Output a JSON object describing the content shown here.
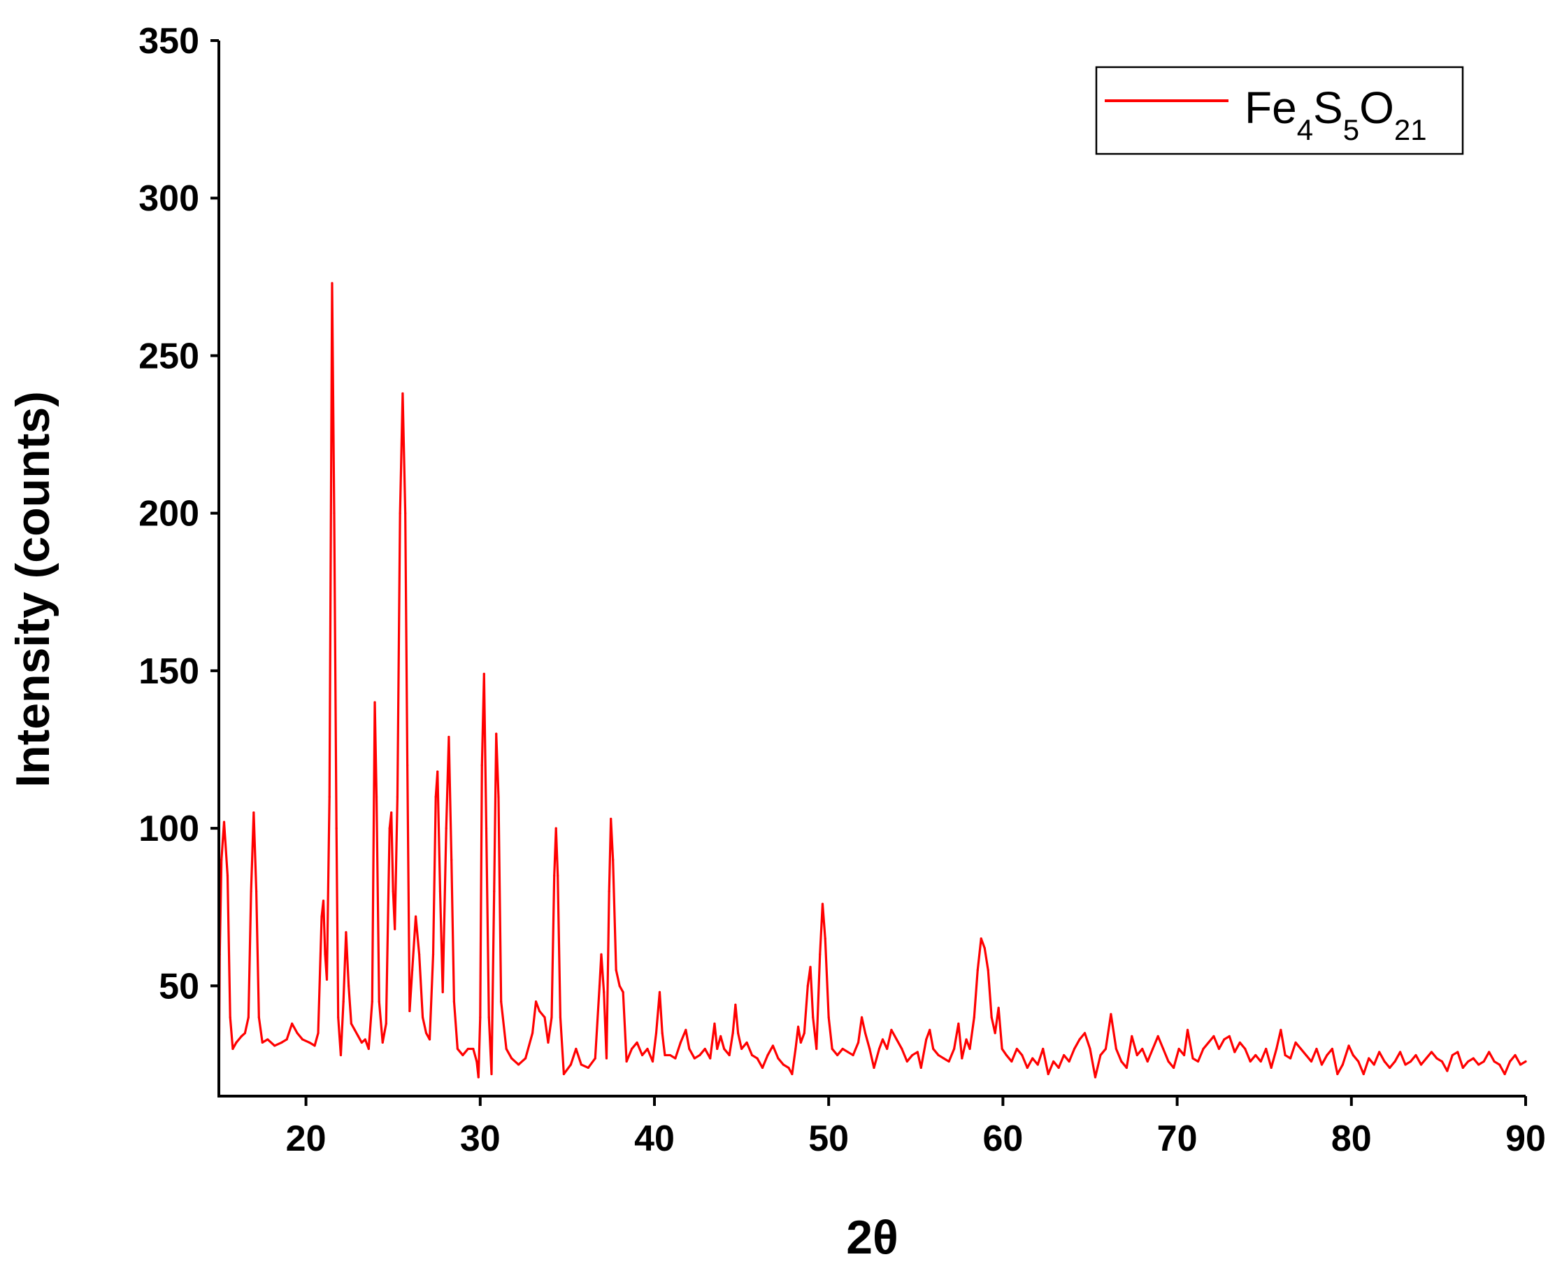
{
  "chart_data": {
    "type": "line",
    "title": "",
    "xlabel": "2θ",
    "ylabel": "Intensity (counts)",
    "xlim": [
      15,
      90
    ],
    "ylim": [
      15,
      350
    ],
    "x_ticks": [
      20,
      30,
      40,
      50,
      60,
      70,
      80,
      90
    ],
    "y_ticks": [
      50,
      100,
      150,
      200,
      250,
      300,
      350
    ],
    "grid": false,
    "legend_position": "top-right",
    "series": [
      {
        "name": "Fe4S5O21",
        "legend_parts": [
          {
            "text": "Fe",
            "sub": false
          },
          {
            "text": "4",
            "sub": true
          },
          {
            "text": "S",
            "sub": false
          },
          {
            "text": "5",
            "sub": true
          },
          {
            "text": "O",
            "sub": false
          },
          {
            "text": "21",
            "sub": true
          }
        ],
        "color": "#ff0000",
        "points": [
          [
            15.0,
            18
          ],
          [
            15.05,
            60
          ],
          [
            15.15,
            90
          ],
          [
            15.3,
            102
          ],
          [
            15.5,
            85
          ],
          [
            15.65,
            40
          ],
          [
            15.8,
            30
          ],
          [
            16.0,
            32
          ],
          [
            16.3,
            34
          ],
          [
            16.5,
            35
          ],
          [
            16.7,
            40
          ],
          [
            16.85,
            80
          ],
          [
            17.0,
            105
          ],
          [
            17.15,
            80
          ],
          [
            17.3,
            40
          ],
          [
            17.5,
            32
          ],
          [
            17.8,
            33
          ],
          [
            18.2,
            31
          ],
          [
            18.6,
            32
          ],
          [
            18.9,
            33
          ],
          [
            19.2,
            38
          ],
          [
            19.5,
            35
          ],
          [
            19.8,
            33
          ],
          [
            20.2,
            32
          ],
          [
            20.5,
            31
          ],
          [
            20.7,
            35
          ],
          [
            20.9,
            72
          ],
          [
            21.0,
            77
          ],
          [
            21.1,
            60
          ],
          [
            21.2,
            52
          ],
          [
            21.35,
            110
          ],
          [
            21.5,
            273
          ],
          [
            21.62,
            200
          ],
          [
            21.75,
            100
          ],
          [
            21.85,
            40
          ],
          [
            22.0,
            28
          ],
          [
            22.15,
            45
          ],
          [
            22.3,
            67
          ],
          [
            22.45,
            50
          ],
          [
            22.6,
            38
          ],
          [
            22.8,
            36
          ],
          [
            23.0,
            34
          ],
          [
            23.2,
            32
          ],
          [
            23.4,
            33
          ],
          [
            23.6,
            30
          ],
          [
            23.8,
            45
          ],
          [
            23.95,
            140
          ],
          [
            24.05,
            110
          ],
          [
            24.2,
            45
          ],
          [
            24.4,
            32
          ],
          [
            24.6,
            38
          ],
          [
            24.8,
            100
          ],
          [
            24.9,
            105
          ],
          [
            25.0,
            80
          ],
          [
            25.1,
            68
          ],
          [
            25.25,
            110
          ],
          [
            25.4,
            200
          ],
          [
            25.55,
            238
          ],
          [
            25.7,
            200
          ],
          [
            25.82,
            120
          ],
          [
            25.95,
            42
          ],
          [
            26.1,
            55
          ],
          [
            26.3,
            72
          ],
          [
            26.5,
            60
          ],
          [
            26.7,
            40
          ],
          [
            26.9,
            35
          ],
          [
            27.1,
            33
          ],
          [
            27.3,
            60
          ],
          [
            27.45,
            110
          ],
          [
            27.55,
            118
          ],
          [
            27.7,
            80
          ],
          [
            27.85,
            48
          ],
          [
            28.05,
            100
          ],
          [
            28.2,
            129
          ],
          [
            28.35,
            90
          ],
          [
            28.5,
            45
          ],
          [
            28.7,
            30
          ],
          [
            29.0,
            28
          ],
          [
            29.3,
            30
          ],
          [
            29.6,
            30
          ],
          [
            29.8,
            26
          ],
          [
            29.9,
            21
          ],
          [
            30.0,
            40
          ],
          [
            30.1,
            120
          ],
          [
            30.22,
            149
          ],
          [
            30.35,
            100
          ],
          [
            30.5,
            40
          ],
          [
            30.65,
            22
          ],
          [
            30.8,
            80
          ],
          [
            30.92,
            130
          ],
          [
            31.05,
            110
          ],
          [
            31.2,
            45
          ],
          [
            31.5,
            30
          ],
          [
            31.8,
            27
          ],
          [
            32.2,
            25
          ],
          [
            32.6,
            27
          ],
          [
            33.0,
            35
          ],
          [
            33.2,
            45
          ],
          [
            33.4,
            42
          ],
          [
            33.7,
            40
          ],
          [
            33.9,
            32
          ],
          [
            34.1,
            40
          ],
          [
            34.25,
            85
          ],
          [
            34.35,
            100
          ],
          [
            34.45,
            85
          ],
          [
            34.6,
            40
          ],
          [
            34.8,
            22
          ],
          [
            35.2,
            25
          ],
          [
            35.5,
            30
          ],
          [
            35.8,
            25
          ],
          [
            36.2,
            24
          ],
          [
            36.6,
            27
          ],
          [
            36.85,
            50
          ],
          [
            36.95,
            60
          ],
          [
            37.1,
            48
          ],
          [
            37.25,
            27
          ],
          [
            37.4,
            80
          ],
          [
            37.5,
            103
          ],
          [
            37.62,
            90
          ],
          [
            37.8,
            55
          ],
          [
            38.0,
            50
          ],
          [
            38.2,
            48
          ],
          [
            38.4,
            26
          ],
          [
            38.7,
            30
          ],
          [
            39.0,
            32
          ],
          [
            39.3,
            28
          ],
          [
            39.6,
            30
          ],
          [
            39.9,
            26
          ],
          [
            40.1,
            35
          ],
          [
            40.3,
            48
          ],
          [
            40.45,
            35
          ],
          [
            40.6,
            28
          ],
          [
            40.9,
            28
          ],
          [
            41.2,
            27
          ],
          [
            41.5,
            32
          ],
          [
            41.8,
            36
          ],
          [
            42.0,
            30
          ],
          [
            42.3,
            27
          ],
          [
            42.6,
            28
          ],
          [
            42.9,
            30
          ],
          [
            43.2,
            27
          ],
          [
            43.45,
            38
          ],
          [
            43.6,
            30
          ],
          [
            43.8,
            34
          ],
          [
            44.0,
            30
          ],
          [
            44.3,
            28
          ],
          [
            44.5,
            35
          ],
          [
            44.65,
            44
          ],
          [
            44.8,
            35
          ],
          [
            45.0,
            30
          ],
          [
            45.3,
            32
          ],
          [
            45.6,
            28
          ],
          [
            45.9,
            27
          ],
          [
            46.2,
            24
          ],
          [
            46.5,
            28
          ],
          [
            46.8,
            31
          ],
          [
            47.1,
            27
          ],
          [
            47.4,
            25
          ],
          [
            47.7,
            24
          ],
          [
            47.9,
            22
          ],
          [
            48.1,
            30
          ],
          [
            48.25,
            37
          ],
          [
            48.4,
            32
          ],
          [
            48.6,
            35
          ],
          [
            48.8,
            50
          ],
          [
            48.95,
            56
          ],
          [
            49.1,
            40
          ],
          [
            49.3,
            30
          ],
          [
            49.5,
            60
          ],
          [
            49.65,
            76
          ],
          [
            49.8,
            65
          ],
          [
            50.0,
            40
          ],
          [
            50.2,
            30
          ],
          [
            50.5,
            28
          ],
          [
            50.8,
            30
          ],
          [
            51.1,
            29
          ],
          [
            51.4,
            28
          ],
          [
            51.7,
            32
          ],
          [
            51.9,
            40
          ],
          [
            52.1,
            35
          ],
          [
            52.35,
            30
          ],
          [
            52.6,
            24
          ],
          [
            52.9,
            30
          ],
          [
            53.1,
            33
          ],
          [
            53.35,
            30
          ],
          [
            53.6,
            36
          ],
          [
            53.9,
            33
          ],
          [
            54.2,
            30
          ],
          [
            54.5,
            26
          ],
          [
            54.8,
            28
          ],
          [
            55.1,
            29
          ],
          [
            55.3,
            24
          ],
          [
            55.6,
            33
          ],
          [
            55.8,
            36
          ],
          [
            56.0,
            30
          ],
          [
            56.3,
            28
          ],
          [
            56.6,
            27
          ],
          [
            56.9,
            26
          ],
          [
            57.2,
            30
          ],
          [
            57.45,
            38
          ],
          [
            57.65,
            27
          ],
          [
            57.9,
            33
          ],
          [
            58.1,
            30
          ],
          [
            58.35,
            40
          ],
          [
            58.55,
            55
          ],
          [
            58.75,
            65
          ],
          [
            58.95,
            62
          ],
          [
            59.15,
            55
          ],
          [
            59.35,
            40
          ],
          [
            59.55,
            35
          ],
          [
            59.75,
            43
          ],
          [
            59.95,
            30
          ],
          [
            60.2,
            28
          ],
          [
            60.5,
            26
          ],
          [
            60.8,
            30
          ],
          [
            61.1,
            28
          ],
          [
            61.4,
            24
          ],
          [
            61.7,
            27
          ],
          [
            62.0,
            25
          ],
          [
            62.3,
            30
          ],
          [
            62.6,
            22
          ],
          [
            62.9,
            26
          ],
          [
            63.2,
            24
          ],
          [
            63.5,
            28
          ],
          [
            63.8,
            26
          ],
          [
            64.1,
            30
          ],
          [
            64.4,
            33
          ],
          [
            64.7,
            35
          ],
          [
            65.0,
            30
          ],
          [
            65.3,
            21
          ],
          [
            65.6,
            28
          ],
          [
            65.9,
            30
          ],
          [
            66.2,
            41
          ],
          [
            66.5,
            30
          ],
          [
            66.8,
            26
          ],
          [
            67.1,
            24
          ],
          [
            67.4,
            34
          ],
          [
            67.7,
            28
          ],
          [
            68.0,
            30
          ],
          [
            68.3,
            26
          ],
          [
            68.6,
            30
          ],
          [
            68.9,
            34
          ],
          [
            69.2,
            30
          ],
          [
            69.5,
            26
          ],
          [
            69.8,
            24
          ],
          [
            70.1,
            30
          ],
          [
            70.4,
            28
          ],
          [
            70.6,
            36
          ],
          [
            70.9,
            27
          ],
          [
            71.2,
            26
          ],
          [
            71.5,
            30
          ],
          [
            71.8,
            32
          ],
          [
            72.1,
            34
          ],
          [
            72.4,
            30
          ],
          [
            72.7,
            33
          ],
          [
            73.0,
            34
          ],
          [
            73.3,
            29
          ],
          [
            73.6,
            32
          ],
          [
            73.9,
            30
          ],
          [
            74.2,
            26
          ],
          [
            74.5,
            28
          ],
          [
            74.8,
            26
          ],
          [
            75.1,
            30
          ],
          [
            75.4,
            24
          ],
          [
            75.7,
            30
          ],
          [
            75.95,
            36
          ],
          [
            76.2,
            28
          ],
          [
            76.5,
            27
          ],
          [
            76.8,
            32
          ],
          [
            77.1,
            30
          ],
          [
            77.4,
            28
          ],
          [
            77.7,
            26
          ],
          [
            78.0,
            30
          ],
          [
            78.3,
            25
          ],
          [
            78.6,
            28
          ],
          [
            78.9,
            30
          ],
          [
            79.2,
            22
          ],
          [
            79.5,
            25
          ],
          [
            79.85,
            31
          ],
          [
            80.1,
            28
          ],
          [
            80.4,
            26
          ],
          [
            80.7,
            22
          ],
          [
            81.0,
            27
          ],
          [
            81.3,
            25
          ],
          [
            81.6,
            29
          ],
          [
            81.9,
            26
          ],
          [
            82.2,
            24
          ],
          [
            82.5,
            26
          ],
          [
            82.8,
            29
          ],
          [
            83.1,
            25
          ],
          [
            83.4,
            26
          ],
          [
            83.7,
            28
          ],
          [
            84.0,
            25
          ],
          [
            84.3,
            27
          ],
          [
            84.6,
            29
          ],
          [
            84.9,
            27
          ],
          [
            85.2,
            26
          ],
          [
            85.5,
            23
          ],
          [
            85.8,
            28
          ],
          [
            86.1,
            29
          ],
          [
            86.4,
            24
          ],
          [
            86.7,
            26
          ],
          [
            87.0,
            27
          ],
          [
            87.3,
            25
          ],
          [
            87.6,
            26
          ],
          [
            87.9,
            29
          ],
          [
            88.2,
            26
          ],
          [
            88.5,
            25
          ],
          [
            88.8,
            22
          ],
          [
            89.1,
            26
          ],
          [
            89.4,
            28
          ],
          [
            89.7,
            25
          ],
          [
            90.0,
            26
          ]
        ]
      }
    ]
  }
}
